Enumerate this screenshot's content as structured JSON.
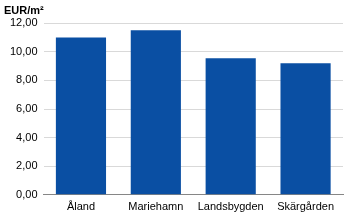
{
  "chart_data": {
    "type": "bar",
    "ylabel": "EUR/m²",
    "categories": [
      "Åland",
      "Mariehamn",
      "Landsbygden",
      "Skärgården"
    ],
    "values": [
      11.0,
      11.5,
      9.55,
      9.2
    ],
    "color": "#0a4fa3",
    "ylim": [
      0,
      12
    ],
    "yticks": [
      {
        "value": 0,
        "label": "0,00"
      },
      {
        "value": 2,
        "label": "2,00"
      },
      {
        "value": 4,
        "label": "4,00"
      },
      {
        "value": 6,
        "label": "6,00"
      },
      {
        "value": 8,
        "label": "8,00"
      },
      {
        "value": 10,
        "label": "10,00"
      },
      {
        "value": 12,
        "label": "12,00"
      }
    ],
    "grid": true
  }
}
